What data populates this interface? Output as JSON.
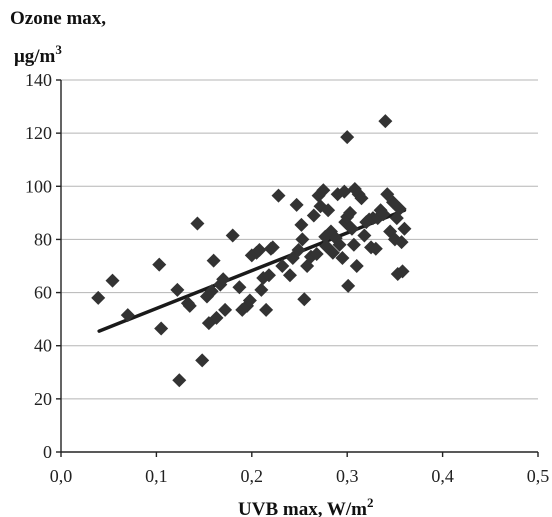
{
  "chart_data": {
    "type": "scatter",
    "ylabel_line1": "Ozone max,",
    "ylabel_line2": "μg/m",
    "ylabel_sup": "3",
    "xlabel": "UVB max, W/m",
    "xlabel_sup": "2",
    "xlim": [
      0.0,
      0.5
    ],
    "ylim": [
      0,
      140
    ],
    "x_ticks": [
      0.0,
      0.1,
      0.2,
      0.3,
      0.4,
      0.5
    ],
    "x_tick_labels": [
      "0,0",
      "0,1",
      "0,2",
      "0,3",
      "0,4",
      "0,5"
    ],
    "y_ticks": [
      0,
      20,
      40,
      60,
      80,
      100,
      120,
      140
    ],
    "y_tick_labels": [
      "0",
      "20",
      "40",
      "60",
      "80",
      "100",
      "120",
      "140"
    ],
    "grid": "horizontal",
    "trendline": {
      "x": [
        0.04,
        0.36
      ],
      "y": [
        45.5,
        91.0
      ]
    },
    "series": [
      {
        "x": [
          0.039,
          0.054,
          0.07,
          0.103,
          0.105,
          0.122,
          0.124,
          0.133,
          0.135,
          0.143,
          0.148,
          0.153,
          0.155,
          0.158,
          0.16,
          0.163,
          0.167,
          0.17,
          0.172,
          0.18,
          0.187,
          0.19,
          0.195,
          0.198,
          0.2,
          0.205,
          0.208,
          0.21,
          0.212,
          0.215,
          0.218,
          0.22,
          0.222,
          0.228,
          0.232,
          0.24,
          0.243,
          0.247,
          0.249,
          0.252,
          0.253,
          0.255,
          0.258,
          0.262,
          0.265,
          0.268,
          0.27,
          0.272,
          0.275,
          0.277,
          0.278,
          0.28,
          0.283,
          0.285,
          0.288,
          0.29,
          0.292,
          0.295,
          0.297,
          0.298,
          0.3,
          0.3,
          0.301,
          0.303,
          0.305,
          0.307,
          0.308,
          0.31,
          0.312,
          0.315,
          0.318,
          0.32,
          0.323,
          0.325,
          0.327,
          0.33,
          0.332,
          0.335,
          0.338,
          0.34,
          0.342,
          0.345,
          0.348,
          0.35,
          0.352,
          0.353,
          0.355,
          0.357,
          0.358,
          0.36
        ],
        "y": [
          58,
          64.5,
          51.5,
          70.5,
          46.5,
          61,
          27,
          56,
          55,
          86,
          34.5,
          58.5,
          48.5,
          60.5,
          72,
          50.5,
          63,
          65,
          53.5,
          81.5,
          62,
          53.5,
          55,
          57,
          74,
          75,
          76,
          61,
          65.5,
          53.5,
          66.5,
          76.5,
          77,
          96.5,
          70,
          66.5,
          73,
          93,
          76,
          85.5,
          80,
          57.5,
          70,
          73.5,
          89,
          74.5,
          96.5,
          92.5,
          98.5,
          81,
          77.5,
          91,
          83,
          75,
          80.5,
          97,
          78,
          73,
          98,
          86.5,
          118.5,
          88.5,
          62.5,
          90,
          84,
          78,
          99,
          70,
          97,
          95.5,
          81.5,
          86.5,
          87.5,
          77,
          88,
          76.5,
          88,
          91,
          89.5,
          124.5,
          97,
          83,
          94,
          80,
          88,
          67,
          91.5,
          79,
          68,
          84
        ]
      }
    ]
  }
}
